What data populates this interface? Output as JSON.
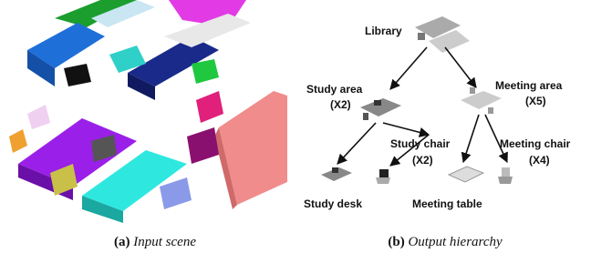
{
  "panels": [
    {
      "label": "(a)",
      "caption": "Input scene"
    },
    {
      "label": "(b)",
      "caption": "Output hierarchy"
    }
  ],
  "hierarchy": {
    "nodes": [
      {
        "label": "Library"
      },
      {
        "label": "Study area",
        "count": "(X2)"
      },
      {
        "label": "Meeting area",
        "count": "(X5)"
      },
      {
        "label": "Study chair",
        "count": "(X2)"
      },
      {
        "label": "Meeting chair",
        "count": "(X4)"
      },
      {
        "label": "Study desk"
      },
      {
        "label": "Meeting table"
      }
    ]
  }
}
